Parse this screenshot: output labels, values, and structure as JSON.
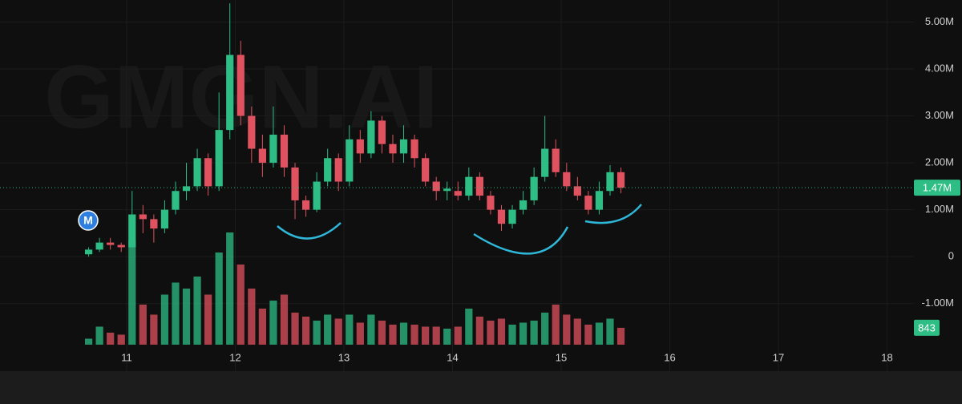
{
  "chart_data": {
    "type": "candlestick",
    "watermark": "GMGN.AI",
    "marker_label": "M",
    "x": [
      10.65,
      10.75,
      10.85,
      10.95,
      11.05,
      11.15,
      11.25,
      11.35,
      11.45,
      11.55,
      11.65,
      11.75,
      11.85,
      11.95,
      12.05,
      12.15,
      12.25,
      12.35,
      12.45,
      12.55,
      12.65,
      12.75,
      12.85,
      12.95,
      13.05,
      13.15,
      13.25,
      13.35,
      13.45,
      13.55,
      13.65,
      13.75,
      13.85,
      13.95,
      14.05,
      14.15,
      14.25,
      14.35,
      14.45,
      14.55,
      14.65,
      14.75,
      14.85,
      14.95,
      15.05,
      15.15,
      15.25,
      15.35,
      15.45,
      15.55
    ],
    "open": [
      0.05,
      0.15,
      0.3,
      0.25,
      0.2,
      0.9,
      0.8,
      0.6,
      1.0,
      1.4,
      1.5,
      2.1,
      1.5,
      2.7,
      4.3,
      3.0,
      2.3,
      2.0,
      2.6,
      1.9,
      1.2,
      1.0,
      1.6,
      2.1,
      1.6,
      2.5,
      2.2,
      2.9,
      2.4,
      2.2,
      2.5,
      2.1,
      1.6,
      1.4,
      1.4,
      1.3,
      1.7,
      1.3,
      1.0,
      0.7,
      1.0,
      1.2,
      1.7,
      2.3,
      1.8,
      1.5,
      1.3,
      1.0,
      1.4,
      1.8
    ],
    "high": [
      0.2,
      0.4,
      0.4,
      0.3,
      1.4,
      1.1,
      0.9,
      1.2,
      1.6,
      2.0,
      2.3,
      2.2,
      3.5,
      5.4,
      4.6,
      3.2,
      2.6,
      3.2,
      2.8,
      2.0,
      1.3,
      1.8,
      2.3,
      2.2,
      2.8,
      2.7,
      3.1,
      3.0,
      2.6,
      2.8,
      2.6,
      2.2,
      1.7,
      1.6,
      1.6,
      1.9,
      1.8,
      1.4,
      1.1,
      1.1,
      1.4,
      1.9,
      3.0,
      2.5,
      2.0,
      1.7,
      1.4,
      1.6,
      1.95,
      1.9
    ],
    "low": [
      0.0,
      0.1,
      0.15,
      0.1,
      0.2,
      0.5,
      0.3,
      0.5,
      0.9,
      1.2,
      1.4,
      1.3,
      1.4,
      2.5,
      2.8,
      2.0,
      1.7,
      1.9,
      1.7,
      0.8,
      0.85,
      0.95,
      1.5,
      1.4,
      1.5,
      2.0,
      2.1,
      2.2,
      2.0,
      2.0,
      1.9,
      1.5,
      1.2,
      1.2,
      1.2,
      1.2,
      1.2,
      0.9,
      0.55,
      0.6,
      0.9,
      1.1,
      1.6,
      1.7,
      1.4,
      1.2,
      0.9,
      0.9,
      1.3,
      1.35
    ],
    "close": [
      0.15,
      0.3,
      0.25,
      0.2,
      0.9,
      0.8,
      0.6,
      1.0,
      1.4,
      1.5,
      2.1,
      1.5,
      2.7,
      4.3,
      3.0,
      2.3,
      2.0,
      2.6,
      1.9,
      1.2,
      1.0,
      1.6,
      2.1,
      1.6,
      2.5,
      2.2,
      2.9,
      2.4,
      2.2,
      2.5,
      2.1,
      1.6,
      1.4,
      1.45,
      1.3,
      1.7,
      1.3,
      1.0,
      0.7,
      1.0,
      1.2,
      1.7,
      2.3,
      1.8,
      1.5,
      1.3,
      1.0,
      1.4,
      1.8,
      1.47
    ],
    "up_color": "#2ebd85",
    "down_color": "#e0525f",
    "volume": {
      "values": [
        300,
        900,
        600,
        500,
        5200,
        2000,
        1500,
        2500,
        3100,
        2800,
        3400,
        2500,
        4600,
        5600,
        4000,
        2800,
        1800,
        2200,
        2500,
        1600,
        1400,
        1200,
        1500,
        1300,
        1500,
        1100,
        1500,
        1200,
        1000,
        1100,
        1000,
        900,
        900,
        800,
        900,
        1800,
        1400,
        1200,
        1300,
        1000,
        1100,
        1200,
        1600,
        2000,
        1500,
        1300,
        1000,
        1100,
        1300,
        843
      ],
      "ylim": [
        0,
        6000
      ]
    },
    "last_price": {
      "value": 1.47,
      "label": "1.47M"
    },
    "xlim": [
      9.834,
      18.247
    ],
    "xticks": [
      11,
      12,
      13,
      14,
      15,
      16,
      17,
      18
    ],
    "ylim": [
      -2.44,
      5.47
    ],
    "yticks": [
      {
        "value": 5,
        "label": "5.00M"
      },
      {
        "value": 4,
        "label": "4.00M"
      },
      {
        "value": 3,
        "label": "3.00M"
      },
      {
        "value": 2,
        "label": "2.00M"
      },
      {
        "value": 1,
        "label": "1.00M"
      },
      0,
      {
        "value": -1,
        "label": "-1.00M"
      }
    ],
    "grid": true
  }
}
